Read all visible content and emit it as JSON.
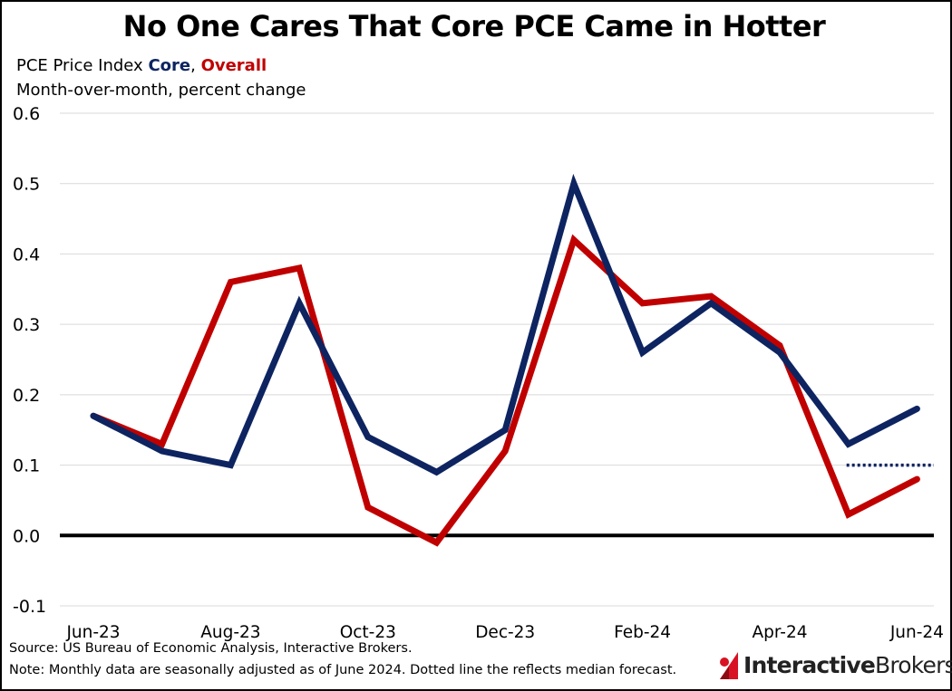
{
  "header": {
    "title": "No One Cares That Core PCE Came in Hotter",
    "subtitle_prefix": "PCE Price Index ",
    "subtitle_core": "Core",
    "subtitle_sep": ", ",
    "subtitle_overall": "Overall",
    "subtitle_line2": "Month-over-month, percent change"
  },
  "footer": {
    "source": "Source: US Bureau of Economic Analysis, Interactive Brokers.",
    "note": "Note: Monthly data are seasonally adjusted as of June 2024. Dotted line the reflects median forecast.",
    "logo_text_a": "Interactive",
    "logo_text_b": "Brokers"
  },
  "colors": {
    "core": "#0d2461",
    "overall": "#c00000",
    "zero_line": "#000000",
    "grid": "#d9d9d9",
    "logo_red": "#d81222"
  },
  "chart_data": {
    "type": "line",
    "title": "No One Cares That Core PCE Came in Hotter",
    "ylabel": "",
    "xlabel": "",
    "ylim": [
      -0.1,
      0.6
    ],
    "yticks": [
      "0.6",
      "0.5",
      "0.4",
      "0.3",
      "0.2",
      "0.1",
      "0.0",
      "-0.1"
    ],
    "ytick_values": [
      0.6,
      0.5,
      0.4,
      0.3,
      0.2,
      0.1,
      0.0,
      -0.1
    ],
    "categories": [
      "Jun-23",
      "Jul-23",
      "Aug-23",
      "Sep-23",
      "Oct-23",
      "Nov-23",
      "Dec-23",
      "Jan-24",
      "Feb-24",
      "Mar-24",
      "Apr-24",
      "May-24",
      "Jun-24"
    ],
    "x_tick_labels": [
      "Jun-23",
      "",
      "Aug-23",
      "",
      "Oct-23",
      "",
      "Dec-23",
      "",
      "Feb-24",
      "",
      "Apr-24",
      "",
      "Jun-24"
    ],
    "grid": true,
    "legend": "in subtitle",
    "series": [
      {
        "name": "Core",
        "values": [
          0.17,
          0.12,
          0.1,
          0.33,
          0.14,
          0.09,
          0.15,
          0.5,
          0.26,
          0.33,
          0.26,
          0.13,
          0.18
        ]
      },
      {
        "name": "Overall",
        "values": [
          0.17,
          0.13,
          0.36,
          0.38,
          0.04,
          -0.01,
          0.12,
          0.42,
          0.33,
          0.34,
          0.27,
          0.03,
          0.08
        ]
      }
    ],
    "forecast": {
      "x_from": "May-24",
      "x_to": "Jun-24",
      "value": 0.1,
      "style": "dotted"
    }
  }
}
